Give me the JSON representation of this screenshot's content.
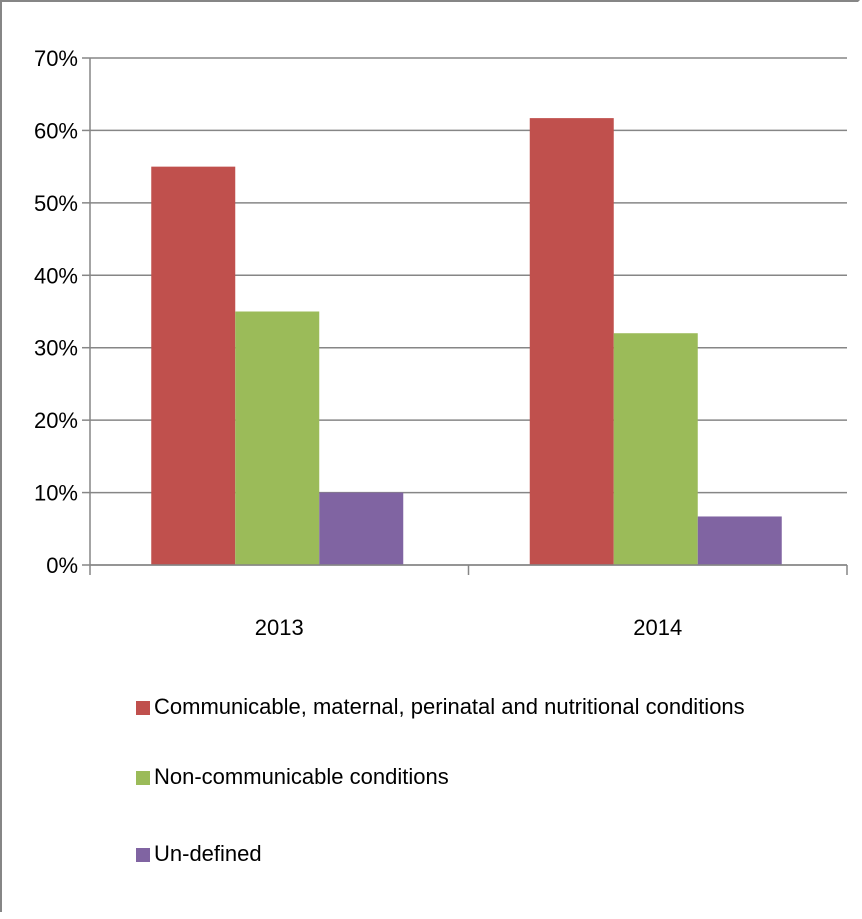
{
  "colors": {
    "series_1": "#c0504d",
    "series_2": "#9bbb59",
    "series_3": "#8064a2",
    "gridline": "#868686",
    "axis": "#868686"
  },
  "chart_data": {
    "type": "bar",
    "title": "",
    "xlabel": "",
    "ylabel": "",
    "categories": [
      "2013",
      "2014"
    ],
    "ylim": [
      0,
      70
    ],
    "yticks": [
      0,
      10,
      20,
      30,
      40,
      50,
      60,
      70
    ],
    "ytick_labels": [
      "0%",
      "10%",
      "20%",
      "30%",
      "40%",
      "50%",
      "60%",
      "70%"
    ],
    "y_unit": "%",
    "grid": true,
    "legend_position": "bottom",
    "series": [
      {
        "name": "Communicable, maternal, perinatal and nutritional conditions",
        "values": [
          55,
          61.7
        ],
        "color": "#c0504d"
      },
      {
        "name": "Non-communicable conditions",
        "values": [
          35,
          32
        ],
        "color": "#9bbb59"
      },
      {
        "name": "Un-defined",
        "values": [
          10,
          6.7
        ],
        "color": "#8064a2"
      }
    ]
  }
}
